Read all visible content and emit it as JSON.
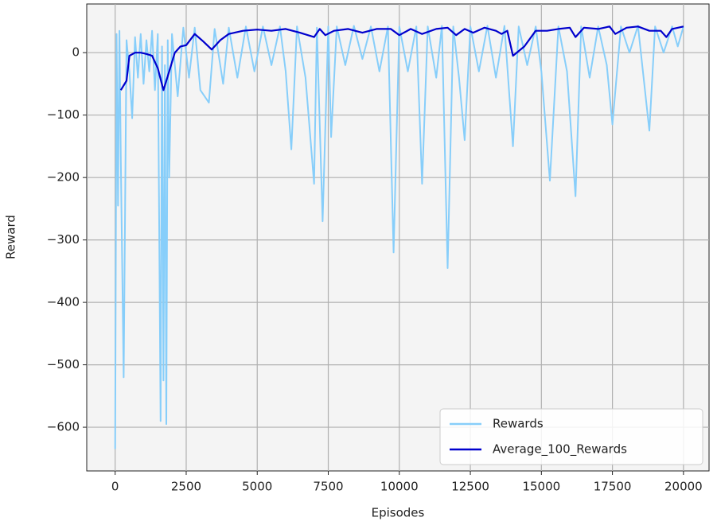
{
  "chart_data": {
    "type": "line",
    "xlabel": "Episodes",
    "ylabel": "Reward",
    "xlim": [
      -1000,
      20900
    ],
    "ylim": [
      -670,
      78
    ],
    "xticks": [
      0,
      2500,
      5000,
      7500,
      10000,
      12500,
      15000,
      17500,
      20000
    ],
    "yticks": [
      {
        "value": -600,
        "label": "−600"
      },
      {
        "value": -500,
        "label": "−500"
      },
      {
        "value": -400,
        "label": "−400"
      },
      {
        "value": -300,
        "label": "−300"
      },
      {
        "value": -200,
        "label": "−200"
      },
      {
        "value": -100,
        "label": "−100"
      },
      0
    ],
    "grid": true,
    "legend": "lower right",
    "series": [
      {
        "name": "Rewards",
        "color": "#87cefa",
        "x": [
          0,
          50,
          100,
          150,
          200,
          300,
          400,
          500,
          600,
          700,
          800,
          900,
          1000,
          1100,
          1200,
          1300,
          1400,
          1500,
          1600,
          1650,
          1700,
          1750,
          1800,
          1850,
          1900,
          2000,
          2200,
          2400,
          2600,
          2800,
          3000,
          3300,
          3500,
          3800,
          4000,
          4300,
          4600,
          4900,
          5200,
          5500,
          5800,
          6000,
          6200,
          6400,
          6700,
          7000,
          7100,
          7300,
          7500,
          7600,
          7800,
          8100,
          8400,
          8700,
          9000,
          9300,
          9600,
          9800,
          10000,
          10300,
          10600,
          10800,
          11000,
          11300,
          11500,
          11700,
          11900,
          12100,
          12300,
          12500,
          12800,
          13100,
          13400,
          13700,
          14000,
          14200,
          14500,
          14800,
          15000,
          15300,
          15600,
          15900,
          16200,
          16400,
          16700,
          17000,
          17300,
          17500,
          17800,
          18100,
          18400,
          18800,
          19000,
          19300,
          19600,
          19800,
          20000
        ],
        "values": [
          -635,
          30,
          -245,
          35,
          -170,
          -520,
          20,
          -30,
          -105,
          25,
          -40,
          30,
          -50,
          20,
          -30,
          35,
          -60,
          30,
          -590,
          10,
          -525,
          -20,
          -595,
          20,
          -200,
          30,
          -70,
          40,
          -40,
          40,
          -60,
          -80,
          38,
          -50,
          40,
          -40,
          42,
          -30,
          42,
          -20,
          42,
          -30,
          -155,
          42,
          -40,
          -210,
          40,
          -270,
          42,
          -135,
          42,
          -20,
          43,
          -10,
          42,
          -30,
          42,
          -320,
          42,
          -30,
          42,
          -210,
          42,
          -40,
          43,
          -345,
          42,
          -40,
          -140,
          42,
          -30,
          43,
          -40,
          43,
          -150,
          42,
          -20,
          42,
          -30,
          -205,
          42,
          -30,
          -230,
          42,
          -40,
          42,
          -20,
          -115,
          42,
          0,
          43,
          -125,
          42,
          0,
          42,
          10,
          42
        ]
      },
      {
        "name": "Average_100_Rewards",
        "color": "#0000cd",
        "x": [
          200,
          400,
          500,
          700,
          900,
          1100,
          1300,
          1500,
          1700,
          1900,
          2100,
          2300,
          2500,
          2800,
          3100,
          3400,
          3700,
          4000,
          4500,
          5000,
          5500,
          6000,
          6500,
          7000,
          7200,
          7400,
          7700,
          8200,
          8700,
          9200,
          9700,
          10000,
          10400,
          10800,
          11300,
          11700,
          12000,
          12300,
          12600,
          13000,
          13400,
          13600,
          13800,
          14000,
          14400,
          14800,
          15200,
          15600,
          16000,
          16200,
          16500,
          17000,
          17400,
          17600,
          18000,
          18400,
          18800,
          19200,
          19400,
          19600,
          20000
        ],
        "values": [
          -60,
          -45,
          -5,
          0,
          0,
          -2,
          -5,
          -25,
          -60,
          -30,
          0,
          10,
          12,
          30,
          18,
          5,
          20,
          30,
          35,
          37,
          35,
          38,
          32,
          25,
          38,
          28,
          35,
          38,
          32,
          38,
          38,
          28,
          38,
          30,
          38,
          40,
          28,
          38,
          32,
          40,
          35,
          30,
          35,
          -5,
          10,
          35,
          35,
          38,
          40,
          25,
          40,
          38,
          42,
          30,
          40,
          42,
          35,
          35,
          25,
          38,
          42
        ]
      }
    ]
  }
}
